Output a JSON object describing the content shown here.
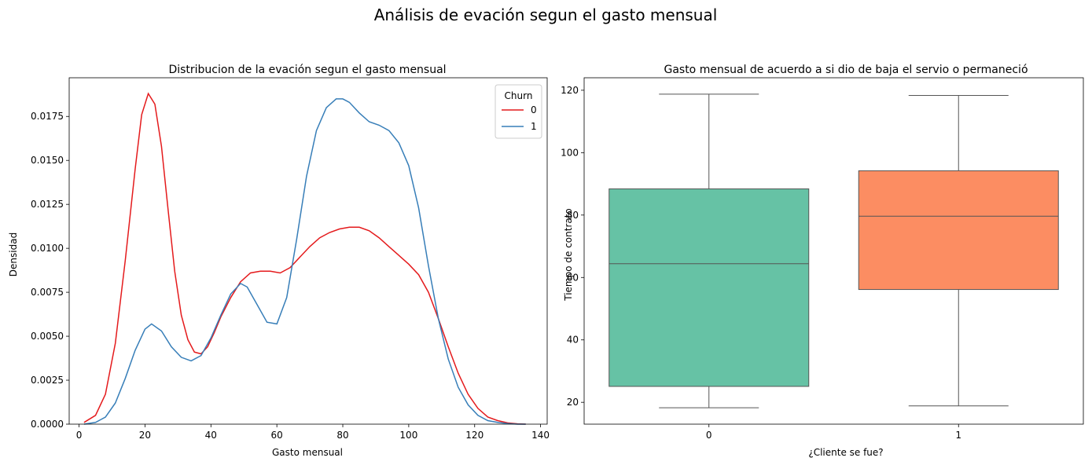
{
  "suptitle": "Análisis de evación segun el gasto mensual",
  "chart_data": [
    {
      "type": "line",
      "subtype": "kde",
      "title": "Distribucion de la evación segun el gasto mensual",
      "xlabel": "Gasto mensual",
      "ylabel": "Densidad",
      "xlim": [
        -3,
        142
      ],
      "ylim": [
        0,
        0.0197
      ],
      "xticks": [
        "0",
        "20",
        "40",
        "60",
        "80",
        "100",
        "120",
        "140"
      ],
      "yticks": [
        "0.0000",
        "0.0025",
        "0.0050",
        "0.0075",
        "0.0100",
        "0.0125",
        "0.0150",
        "0.0175"
      ],
      "grid": false,
      "legend": {
        "title": "Churn",
        "placement": "top-right"
      },
      "series": [
        {
          "name": "0",
          "color": "#e41a1c",
          "x": [
            1.5,
            5,
            8,
            11,
            14,
            17,
            19,
            21,
            23,
            25,
            27,
            29,
            31,
            33,
            35,
            37,
            39,
            41,
            43,
            46,
            49,
            52,
            55,
            58,
            61,
            64,
            67,
            70,
            73,
            76,
            79,
            82,
            85,
            88,
            91,
            94,
            97,
            100,
            103,
            106,
            109,
            112,
            115,
            118,
            121,
            124,
            127,
            130,
            133,
            135.5
          ],
          "y": [
            0.0001,
            0.0005,
            0.0017,
            0.0046,
            0.0093,
            0.0145,
            0.0176,
            0.0188,
            0.0182,
            0.0158,
            0.0122,
            0.0087,
            0.0062,
            0.0048,
            0.0041,
            0.004,
            0.0044,
            0.0052,
            0.0061,
            0.0072,
            0.0081,
            0.0086,
            0.0087,
            0.0087,
            0.0086,
            0.0089,
            0.0095,
            0.0101,
            0.0106,
            0.0109,
            0.0111,
            0.0112,
            0.0112,
            0.011,
            0.0106,
            0.0101,
            0.0096,
            0.0091,
            0.0085,
            0.0075,
            0.006,
            0.0044,
            0.0029,
            0.0017,
            0.0009,
            0.0004,
            0.0002,
            7e-05,
            2e-05,
            0.0
          ]
        },
        {
          "name": "1",
          "color": "#377eb8",
          "x": [
            1.5,
            5,
            8,
            11,
            14,
            17,
            20,
            22,
            25,
            28,
            31,
            34,
            37,
            40,
            43,
            46,
            49,
            51,
            54,
            57,
            60,
            63,
            66,
            69,
            72,
            75,
            78,
            80,
            82,
            85,
            88,
            91,
            94,
            97,
            100,
            103,
            106,
            109,
            112,
            115,
            118,
            121,
            124,
            127,
            130,
            133,
            135.5
          ],
          "y": [
            0.0,
            0.0001,
            0.0004,
            0.0012,
            0.0026,
            0.0042,
            0.0054,
            0.0057,
            0.0053,
            0.0044,
            0.0038,
            0.0036,
            0.0039,
            0.0049,
            0.0062,
            0.0074,
            0.008,
            0.0078,
            0.0068,
            0.0058,
            0.0057,
            0.0072,
            0.0105,
            0.0141,
            0.0167,
            0.018,
            0.0185,
            0.0185,
            0.0183,
            0.0177,
            0.0172,
            0.017,
            0.0167,
            0.016,
            0.0147,
            0.0123,
            0.009,
            0.006,
            0.0037,
            0.0021,
            0.0011,
            0.0005,
            0.0002,
            0.0001,
            3e-05,
            0.0,
            0.0
          ]
        }
      ]
    },
    {
      "type": "box",
      "title": "Gasto mensual de acuerdo a si dio de baja el servio o permaneció",
      "xlabel": "¿Cliente se fue?",
      "ylabel": "Tiempo de contrato",
      "categories": [
        "0",
        "1"
      ],
      "ylim": [
        13.0,
        124.0
      ],
      "yticks": [
        "20",
        "40",
        "60",
        "80",
        "100",
        "120"
      ],
      "grid": false,
      "boxes": [
        {
          "category": "0",
          "whislo": 18.25,
          "q1": 25.1,
          "med": 64.4,
          "q3": 88.4,
          "whishi": 118.75,
          "color": "#66c2a5"
        },
        {
          "category": "1",
          "whislo": 18.85,
          "q1": 56.15,
          "med": 79.65,
          "q3": 94.2,
          "whishi": 118.35,
          "color": "#fc8d62"
        }
      ]
    }
  ]
}
